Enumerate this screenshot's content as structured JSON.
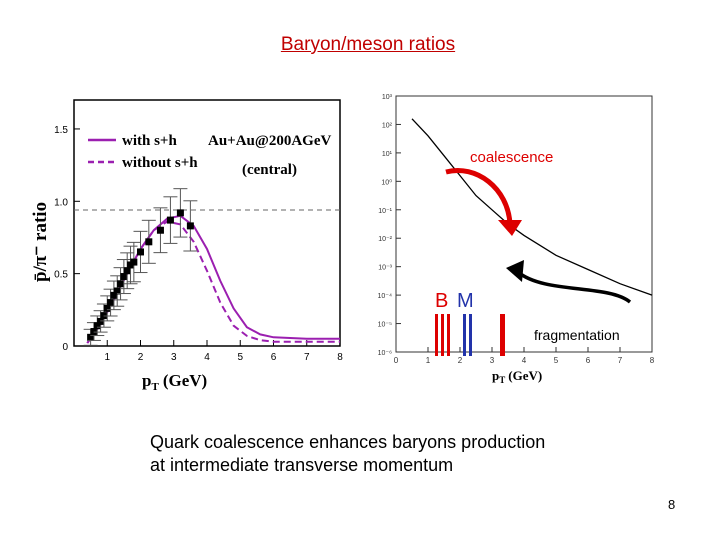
{
  "slide": {
    "title": "Baryon/meson ratios",
    "caption_line1": "Quark coalescence enhances baryons production",
    "caption_line2": "at intermediate transverse momentum",
    "page_number": "8"
  },
  "left_plot": {
    "ylabel": "p̄/π⁻ ratio",
    "xlabel": "p",
    "xlabel_sub": "T",
    "xlabel_unit": "(GeV)",
    "annotation_system": "Au+Au@200AGeV",
    "annotation_centrality": "(central)",
    "legend": [
      "with s+h",
      "without s+h"
    ],
    "xticks": [
      "1",
      "2",
      "3",
      "4",
      "5",
      "6",
      "7",
      "8"
    ],
    "yticks": [
      "0",
      "0.5",
      "1.0",
      "1.5"
    ],
    "colors": {
      "curve": "#9b1fb0",
      "axis": "#000000"
    }
  },
  "right_plot": {
    "xlabel": "p",
    "xlabel_sub": "T",
    "xlabel_unit": "(GeV)",
    "xticks": [
      "0",
      "1",
      "2",
      "3",
      "4",
      "5",
      "6",
      "7",
      "8"
    ],
    "yticks": [
      "10³",
      "10²",
      "10¹",
      "10⁰",
      "10⁻¹",
      "10⁻²",
      "10⁻³",
      "10⁻⁴",
      "10⁻⁵",
      "10⁻⁶"
    ],
    "label_coalescence": "coalescence",
    "label_fragmentation": "fragmentation",
    "label_baryon": "B",
    "label_meson": "M",
    "colors": {
      "baryon": "#e00000",
      "meson": "#2233aa",
      "arrow_red": "#dd0000",
      "arrow_black": "#000000"
    }
  },
  "chart_data": [
    {
      "type": "line",
      "xlabel": "pT (GeV)",
      "ylabel": "p̄/π⁻ ratio",
      "xlim": [
        0,
        8
      ],
      "ylim": [
        0,
        1.7
      ],
      "series": [
        {
          "name": "with s+h",
          "x": [
            0.4,
            0.8,
            1.2,
            1.6,
            2.0,
            2.4,
            2.8,
            3.2,
            3.6,
            4.0,
            4.4,
            4.8,
            5.2,
            5.6,
            6.0,
            7.0,
            8.0
          ],
          "y": [
            0.02,
            0.15,
            0.32,
            0.5,
            0.67,
            0.8,
            0.88,
            0.9,
            0.83,
            0.67,
            0.45,
            0.26,
            0.13,
            0.08,
            0.06,
            0.05,
            0.05
          ]
        },
        {
          "name": "without s+h",
          "x": [
            0.4,
            0.8,
            1.2,
            1.6,
            2.0,
            2.4,
            2.8,
            3.2,
            3.6,
            4.0,
            4.4,
            4.8,
            5.2,
            5.6,
            6.0,
            7.0,
            8.0
          ],
          "y": [
            0.02,
            0.15,
            0.32,
            0.5,
            0.67,
            0.8,
            0.86,
            0.84,
            0.72,
            0.52,
            0.3,
            0.14,
            0.07,
            0.04,
            0.03,
            0.03,
            0.03
          ]
        },
        {
          "name": "data",
          "x": [
            0.5,
            0.6,
            0.7,
            0.8,
            0.9,
            1.0,
            1.1,
            1.2,
            1.3,
            1.4,
            1.5,
            1.6,
            1.7,
            1.8,
            2.0,
            2.25,
            2.6,
            2.9,
            3.2,
            3.5
          ],
          "y": [
            0.06,
            0.1,
            0.14,
            0.17,
            0.21,
            0.26,
            0.3,
            0.35,
            0.38,
            0.43,
            0.48,
            0.52,
            0.56,
            0.58,
            0.65,
            0.72,
            0.8,
            0.87,
            0.92,
            0.83
          ]
        }
      ]
    },
    {
      "type": "line",
      "xlabel": "pT (GeV)",
      "xlim": [
        0,
        8
      ],
      "ylim": [
        -6,
        3
      ],
      "yscale": "log",
      "series": [
        {
          "x": [
            0.5,
            1.0,
            1.5,
            2.0,
            2.5,
            3.0,
            3.5,
            4.0,
            5.0,
            6.0,
            7.0,
            8.0
          ],
          "y": [
            2.2,
            1.6,
            0.9,
            0.2,
            -0.5,
            -1.0,
            -1.5,
            -1.9,
            -2.6,
            -3.1,
            -3.6,
            -4.0
          ]
        }
      ]
    }
  ]
}
